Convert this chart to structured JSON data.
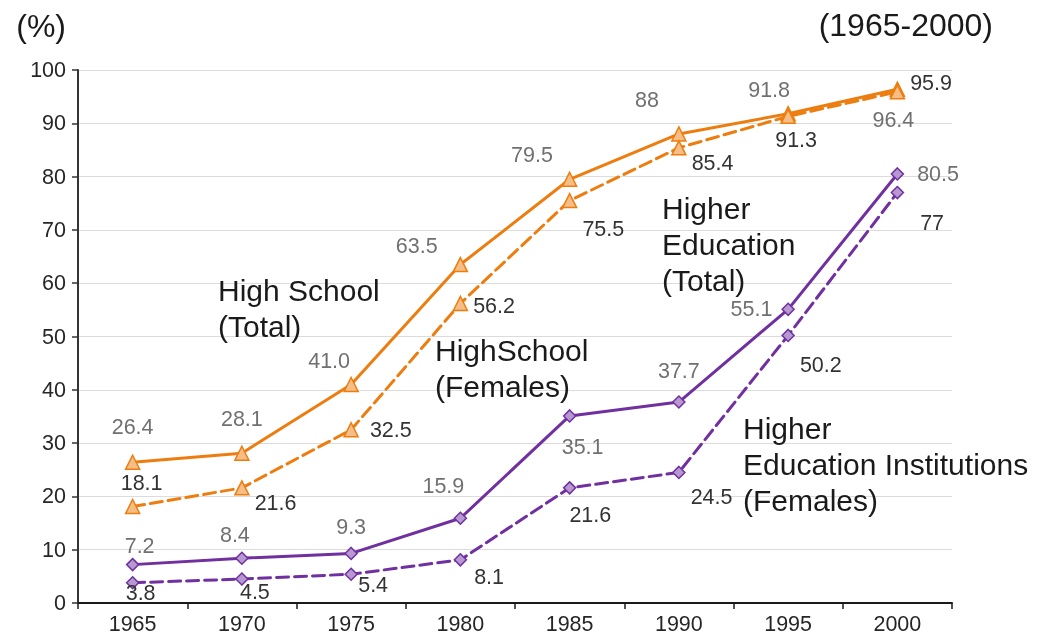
{
  "chart_data": {
    "type": "line",
    "title": "(1965-2000)",
    "ylabel": "(%)",
    "categories": [
      "1965",
      "1970",
      "1975",
      "1980",
      "1985",
      "1990",
      "1995",
      "2000"
    ],
    "ylim": [
      0,
      100
    ],
    "yticks": [
      0,
      10,
      20,
      30,
      40,
      50,
      60,
      70,
      80,
      90,
      100
    ],
    "grid": "y",
    "series": [
      {
        "name": "High School\n(Total)",
        "color": "#ed7d0f",
        "marker": "triangle",
        "line_style": "solid",
        "values": [
          26.4,
          28.1,
          41.0,
          63.5,
          79.5,
          88,
          91.8,
          96.4
        ],
        "value_labels": [
          "26.4",
          "28.1",
          "41.0",
          "63.5",
          "79.5",
          "88",
          "91.8",
          "96.4"
        ]
      },
      {
        "name": "HighSchool\n(Females)",
        "color": "#ed7d0f",
        "marker": "triangle",
        "line_style": "dashed",
        "values": [
          18.1,
          21.6,
          32.5,
          56.2,
          75.5,
          85.4,
          91.3,
          95.9
        ],
        "value_labels": [
          "18.1",
          "21.6",
          "32.5",
          "56.2",
          "75.5",
          "85.4",
          "91.3",
          "95.9"
        ]
      },
      {
        "name": "Higher\nEducation\n(Total)",
        "color": "#7030a0",
        "marker": "diamond",
        "line_style": "solid",
        "values": [
          7.2,
          8.4,
          9.3,
          15.9,
          35.1,
          37.7,
          55.1,
          80.5
        ],
        "value_labels": [
          "7.2",
          "8.4",
          "9.3",
          "15.9",
          "35.1",
          "37.7",
          "55.1",
          "80.5"
        ]
      },
      {
        "name": "Higher\nEducation Institutions\n(Females)",
        "color": "#7030a0",
        "marker": "diamond",
        "line_style": "dashed",
        "values": [
          3.8,
          4.5,
          5.4,
          8.1,
          21.6,
          24.5,
          50.2,
          77
        ],
        "value_labels": [
          "3.8",
          "4.5",
          "5.4",
          "8.1",
          "21.6",
          "24.5",
          "50.2",
          "77"
        ]
      }
    ]
  }
}
